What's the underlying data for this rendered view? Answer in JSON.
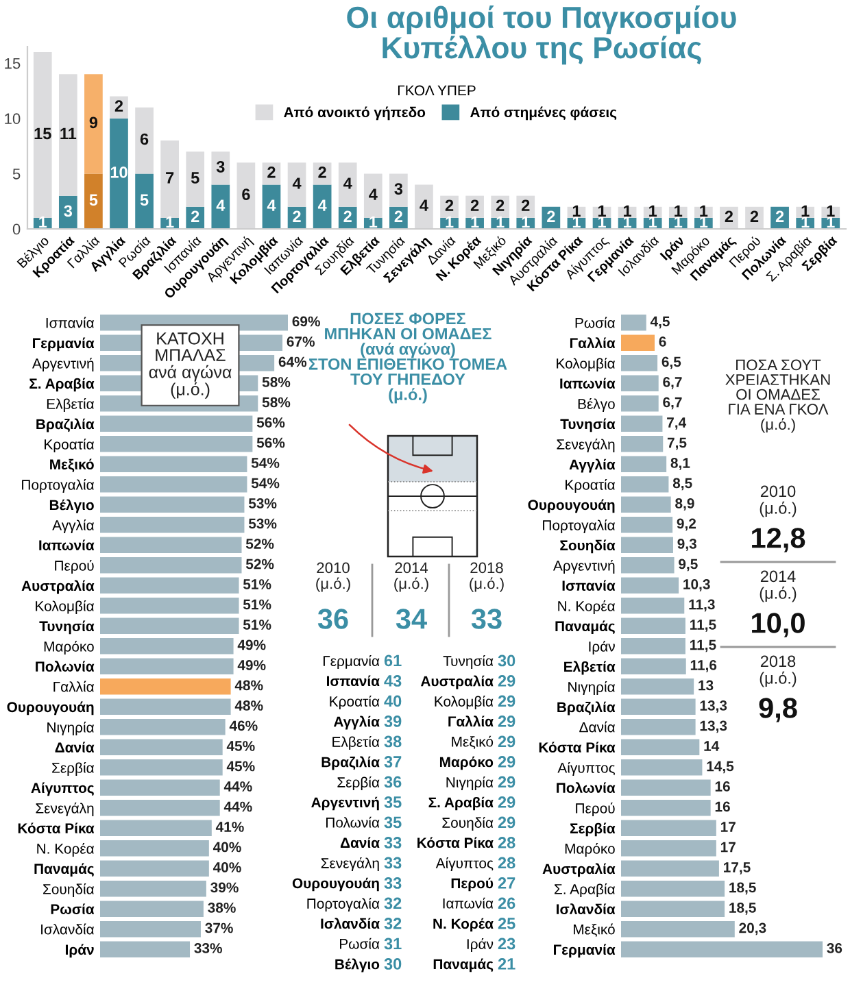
{
  "chart_data": [
    {
      "type": "bar",
      "title": "Οι αριθμοί του Παγκοσμίου\nΚυπέλλου της Ρωσίας",
      "legend_title": "ΓΚΟΛ ΥΠΕΡ",
      "legend": "top",
      "stacked": true,
      "data_labels": true,
      "ylim": [
        0,
        16.5
      ],
      "yticks": [
        0,
        5,
        10,
        15
      ],
      "grid": false,
      "categories": [
        "Βέλγιο",
        "Κροατία",
        "Γαλλία",
        "Αγγλία",
        "Ρωσία",
        "Βραζιλία",
        "Ισπανία",
        "Ουρουγουάη",
        "Αργεντινή",
        "Κολομβία",
        "Ιαπωνία",
        "Πορτογαλία",
        "Σουηδία",
        "Ελβετία",
        "Τυνησία",
        "Σενεγάλη",
        "Δανία",
        "Ν. Κορέα",
        "Μεξικό",
        "Νιγηρία",
        "Αυστραλία",
        "Κόστα Ρίκα",
        "Αίγυπτος",
        "Γερμανία",
        "Ισλανδία",
        "Ιράν",
        "Μαρόκο",
        "Παναμάς",
        "Περού",
        "Πολωνία",
        "Σ. Αραβία",
        "Σερβία"
      ],
      "series": [
        {
          "name": "Από στημένες φάσεις",
          "color": "#3d8a9b",
          "colors": [
            "#3d8a9b",
            "#3d8a9b",
            "#d1812a",
            "#3d8a9b",
            "#3d8a9b",
            "#3d8a9b",
            "#3d8a9b",
            "#3d8a9b",
            "#3d8a9b",
            "#3d8a9b",
            "#3d8a9b",
            "#3d8a9b",
            "#3d8a9b",
            "#3d8a9b",
            "#3d8a9b",
            "#3d8a9b",
            "#3d8a9b",
            "#3d8a9b",
            "#3d8a9b",
            "#3d8a9b",
            "#3d8a9b",
            "#3d8a9b",
            "#3d8a9b",
            "#3d8a9b",
            "#3d8a9b",
            "#3d8a9b",
            "#3d8a9b",
            "#3d8a9b",
            "#3d8a9b",
            "#3d8a9b",
            "#3d8a9b",
            "#3d8a9b"
          ],
          "values": [
            1,
            3,
            5,
            10,
            5,
            1,
            2,
            4,
            null,
            4,
            2,
            4,
            2,
            1,
            2,
            null,
            1,
            1,
            1,
            1,
            2,
            1,
            1,
            1,
            1,
            1,
            1,
            null,
            null,
            2,
            1,
            1
          ]
        },
        {
          "name": "Από ανοικτό γήπεδο",
          "color": "#dcdcde",
          "colors": [
            "#dcdcde",
            "#dcdcde",
            "#f6b06a",
            "#dcdcde",
            "#dcdcde",
            "#dcdcde",
            "#dcdcde",
            "#dcdcde",
            "#dcdcde",
            "#dcdcde",
            "#dcdcde",
            "#dcdcde",
            "#dcdcde",
            "#dcdcde",
            "#dcdcde",
            "#dcdcde",
            "#dcdcde",
            "#dcdcde",
            "#dcdcde",
            "#dcdcde",
            "#dcdcde",
            "#dcdcde",
            "#dcdcde",
            "#dcdcde",
            "#dcdcde",
            "#dcdcde",
            "#dcdcde",
            "#dcdcde",
            "#dcdcde",
            "#dcdcde",
            "#dcdcde",
            "#dcdcde"
          ],
          "values": [
            15,
            11,
            9,
            2,
            6,
            7,
            5,
            3,
            6,
            2,
            4,
            2,
            4,
            4,
            3,
            4,
            2,
            2,
            2,
            2,
            null,
            1,
            1,
            1,
            1,
            1,
            1,
            2,
            2,
            null,
            1,
            1
          ]
        }
      ]
    },
    {
      "type": "bar",
      "orientation": "horizontal",
      "title": "ΚΑΤΟΧΗ\nΜΠΑΛΑΣ\nανά αγώνα\n(μ.ό.)",
      "tick_labels": "y",
      "categories": [
        "Ισπανία",
        "Γερμανία",
        "Αργεντινή",
        "Σ. Αραβία",
        "Ελβετία",
        "Βραζιλία",
        "Κροατία",
        "Μεξικό",
        "Πορτογαλία",
        "Βέλγιο",
        "Αγγλία",
        "Ιαπωνία",
        "Περού",
        "Αυστραλία",
        "Κολομβία",
        "Τυνησία",
        "Μαρόκο",
        "Πολωνία",
        "Γαλλία",
        "Ουρουγουάη",
        "Νιγηρία",
        "Δανία",
        "Σερβία",
        "Αίγυπτος",
        "Σενεγάλη",
        "Κόστα Ρίκα",
        "Ν. Κορέα",
        "Παναμάς",
        "Σουηδία",
        "Ρωσία",
        "Ισλανδία",
        "Ιράν"
      ],
      "values": [
        69,
        67,
        64,
        58,
        58,
        56,
        56,
        54,
        54,
        53,
        53,
        52,
        52,
        51,
        51,
        51,
        49,
        49,
        48,
        48,
        46,
        45,
        45,
        44,
        44,
        41,
        40,
        40,
        39,
        38,
        37,
        33
      ],
      "value_labels": [
        "69%",
        "67%",
        "64%",
        "58%",
        "58%",
        "56%",
        "56%",
        "54%",
        "54%",
        "53%",
        "53%",
        "52%",
        "52%",
        "51%",
        "51%",
        "51%",
        "49%",
        "49%",
        "48%",
        "48%",
        "46%",
        "45%",
        "45%",
        "44%",
        "44%",
        "41%",
        "40%",
        "40%",
        "39%",
        "38%",
        "37%",
        "33%"
      ],
      "colors": [
        "#a3b9c3",
        "#a3b9c3",
        "#a3b9c3",
        "#a3b9c3",
        "#a3b9c3",
        "#a3b9c3",
        "#a3b9c3",
        "#a3b9c3",
        "#a3b9c3",
        "#a3b9c3",
        "#a3b9c3",
        "#a3b9c3",
        "#a3b9c3",
        "#a3b9c3",
        "#a3b9c3",
        "#a3b9c3",
        "#a3b9c3",
        "#a3b9c3",
        "#f7a95c",
        "#a3b9c3",
        "#a3b9c3",
        "#a3b9c3",
        "#a3b9c3",
        "#a3b9c3",
        "#a3b9c3",
        "#a3b9c3",
        "#a3b9c3",
        "#a3b9c3",
        "#a3b9c3",
        "#a3b9c3",
        "#a3b9c3",
        "#a3b9c3"
      ]
    },
    {
      "type": "other",
      "title": "ΠΟΣΕΣ ΦΟΡΕΣ\nΜΠΗΚΑΝ ΟΙ ΟΜΑΔΕΣ\n(ανά αγώνα)\nΣΤΟΝ ΕΠΙΘΕΤΙΚΟ ΤΟΜΕΑ\nΤΟΥ ΓΗΠΕΔΟΥ\n(μ.ό.)",
      "data_labels": true,
      "categories": [
        "Γερμανία",
        "Ισπανία",
        "Κροατία",
        "Αγγλία",
        "Ελβετία",
        "Βραζιλία",
        "Σερβία",
        "Αργεντινή",
        "Πολωνία",
        "Δανία",
        "Σενεγάλη",
        "Ουρουγουάη",
        "Πορτογαλία",
        "Ισλανδία",
        "Ρωσία",
        "Βέλγιο",
        "Τυνησία",
        "Αυστραλία",
        "Κολομβία",
        "Γαλλία",
        "Μεξικό",
        "Μαρόκο",
        "Νιγηρία",
        "Σ. Αραβία",
        "Σουηδία",
        "Κόστα Ρίκα",
        "Αίγυπτος",
        "Περού",
        "Ιαπωνία",
        "Ν. Κορέα",
        "Ιράν",
        "Παναμάς"
      ],
      "values": [
        61,
        43,
        40,
        39,
        38,
        37,
        36,
        35,
        35,
        33,
        33,
        33,
        32,
        32,
        31,
        30,
        30,
        29,
        29,
        29,
        29,
        29,
        29,
        29,
        29,
        28,
        28,
        27,
        26,
        25,
        23,
        21
      ]
    },
    {
      "type": "other",
      "data_labels": true,
      "categories": [
        "2010\n(μ.ό.)",
        "2014\n(μ.ό.)",
        "2018\n(μ.ό.)"
      ],
      "values": [
        36,
        34,
        33
      ]
    },
    {
      "type": "bar",
      "orientation": "horizontal",
      "tick_labels": "y",
      "categories": [
        "Ρωσία",
        "Γαλλία",
        "Κολομβία",
        "Ιαπωνία",
        "Βέλγο",
        "Τυνησία",
        "Σενεγάλη",
        "Αγγλία",
        "Κροατία",
        "Ουρουγουάη",
        "Πορτογαλία",
        "Σουηδία",
        "Αργεντινή",
        "Ισπανία",
        "Ν. Κορέα",
        "Παναμάς",
        "Ιράν",
        "Ελβετία",
        "Νιγηρία",
        "Βραζιλία",
        "Δανία",
        "Κόστα Ρίκα",
        "Αίγυπτος",
        "Πολωνία",
        "Περού",
        "Σερβία",
        "Μαρόκο",
        "Αυστραλία",
        "Σ. Αραβία",
        "Ισλανδία",
        "Μεξικό",
        "Γερμανία"
      ],
      "values": [
        4.5,
        6,
        6.5,
        6.7,
        6.7,
        7.4,
        7.5,
        8.1,
        8.5,
        8.9,
        9.2,
        9.3,
        9.5,
        10.3,
        11.3,
        11.5,
        11.5,
        11.6,
        13,
        13.3,
        13.3,
        14,
        14.5,
        16,
        16,
        17,
        17,
        17.5,
        18.5,
        18.5,
        20.3,
        36
      ],
      "value_labels": [
        "4,5",
        "6",
        "6,5",
        "6,7",
        "6,7",
        "7,4",
        "7,5",
        "8,1",
        "8,5",
        "8,9",
        "9,2",
        "9,3",
        "9,5",
        "10,3",
        "11,3",
        "11,5",
        "11,5",
        "11,6",
        "13",
        "13,3",
        "13,3",
        "14",
        "14,5",
        "16",
        "16",
        "17",
        "17",
        "17,5",
        "18,5",
        "18,5",
        "20,3",
        "36"
      ],
      "colors": [
        "#a3b9c3",
        "#f7a95c",
        "#a3b9c3",
        "#a3b9c3",
        "#a3b9c3",
        "#a3b9c3",
        "#a3b9c3",
        "#a3b9c3",
        "#a3b9c3",
        "#a3b9c3",
        "#a3b9c3",
        "#a3b9c3",
        "#a3b9c3",
        "#a3b9c3",
        "#a3b9c3",
        "#a3b9c3",
        "#a3b9c3",
        "#a3b9c3",
        "#a3b9c3",
        "#a3b9c3",
        "#a3b9c3",
        "#a3b9c3",
        "#a3b9c3",
        "#a3b9c3",
        "#a3b9c3",
        "#a3b9c3",
        "#a3b9c3",
        "#a3b9c3",
        "#a3b9c3",
        "#a3b9c3",
        "#a3b9c3",
        "#a3b9c3"
      ]
    },
    {
      "type": "other",
      "title": "ΠΟΣΑ ΣΟΥΤ\nΧΡΕΙΑΣΤΗΚΑΝ\nΟΙ ΟΜΑΔΕΣ\nΓΙΑ ΕΝΑ ΓΚΟΛ\n(μ.ό.)",
      "categories": [
        "2010\n(μ.ό.)",
        "2014\n(μ.ό.)",
        "2018\n(μ.ό.)"
      ],
      "values": [
        12.8,
        10.0,
        9.8
      ],
      "value_labels": [
        "12,8",
        "10,0",
        "9,8"
      ]
    }
  ]
}
